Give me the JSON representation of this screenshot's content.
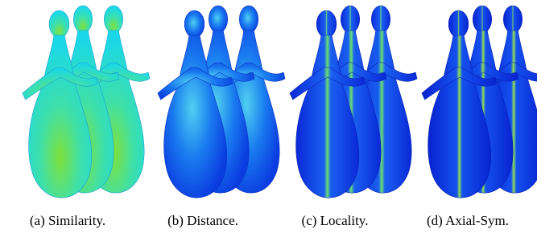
{
  "figure": {
    "panels": [
      {
        "caption": "(a) Similarity."
      },
      {
        "caption": "(b) Distance."
      },
      {
        "caption": "(c) Locality."
      },
      {
        "caption": "(d) Axial-Sym."
      }
    ]
  }
}
